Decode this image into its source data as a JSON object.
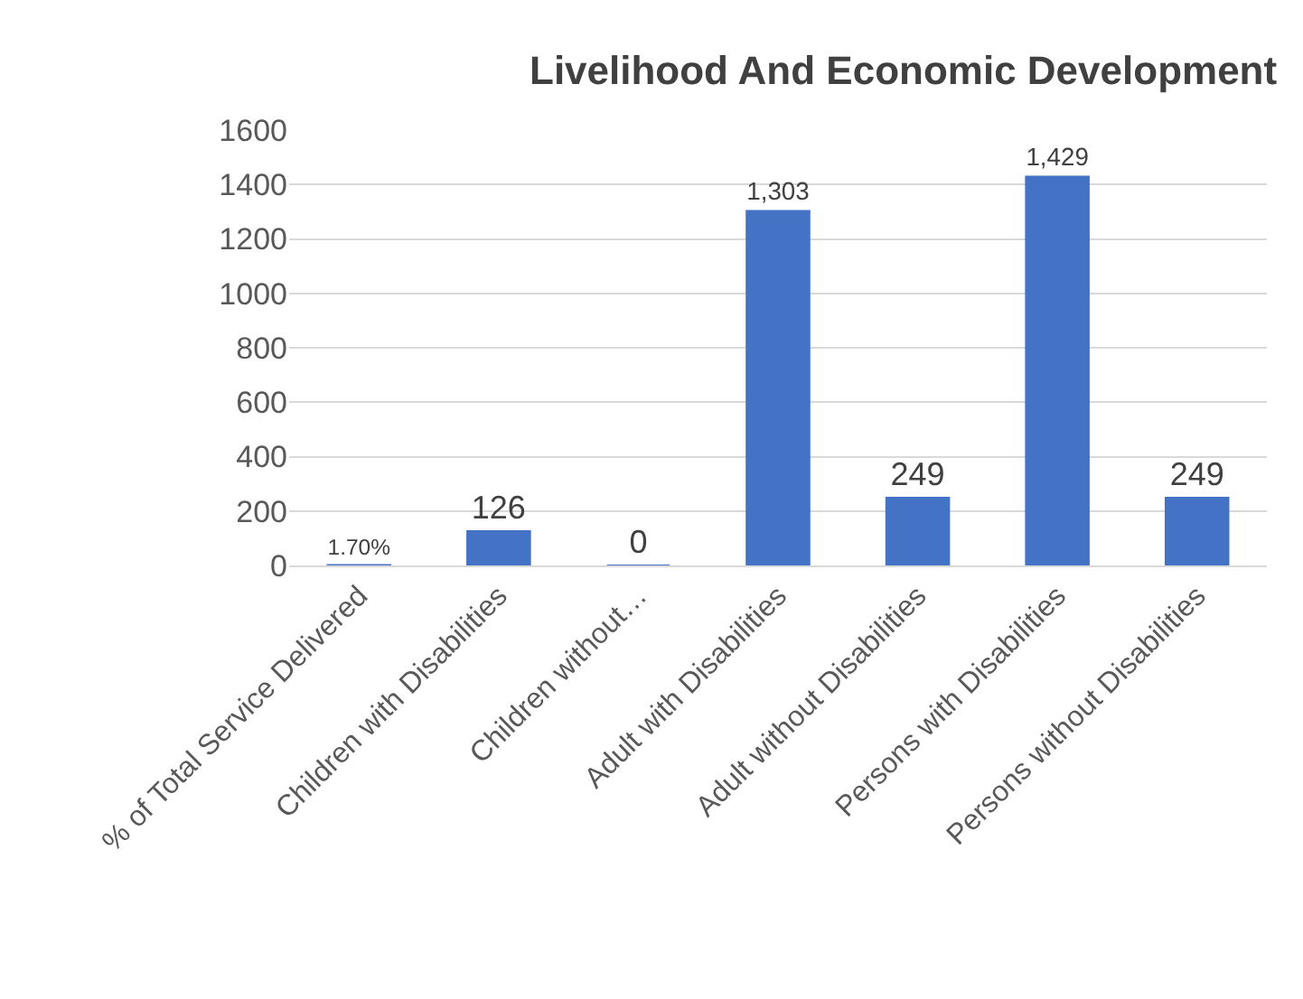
{
  "chart_data": {
    "type": "bar",
    "title": "Livelihood And Economic Development",
    "categories": [
      "% of Total Service Delivered",
      "Children with Disabilities",
      "Children without…",
      "Adult with Disabilities",
      "Adult without Disabilities",
      "Persons with Disabilities",
      "Persons without Disabilities"
    ],
    "values": [
      1.7,
      126,
      0,
      1303,
      249,
      1429,
      249
    ],
    "value_labels": [
      "1.70%",
      "126",
      "0",
      "1,303",
      "249",
      "1,429",
      "249"
    ],
    "color": "#4472c4",
    "ylim": [
      0,
      1600
    ],
    "yticks": [
      0,
      200,
      400,
      600,
      800,
      1000,
      1200,
      1400,
      1600
    ],
    "grid": "y"
  }
}
